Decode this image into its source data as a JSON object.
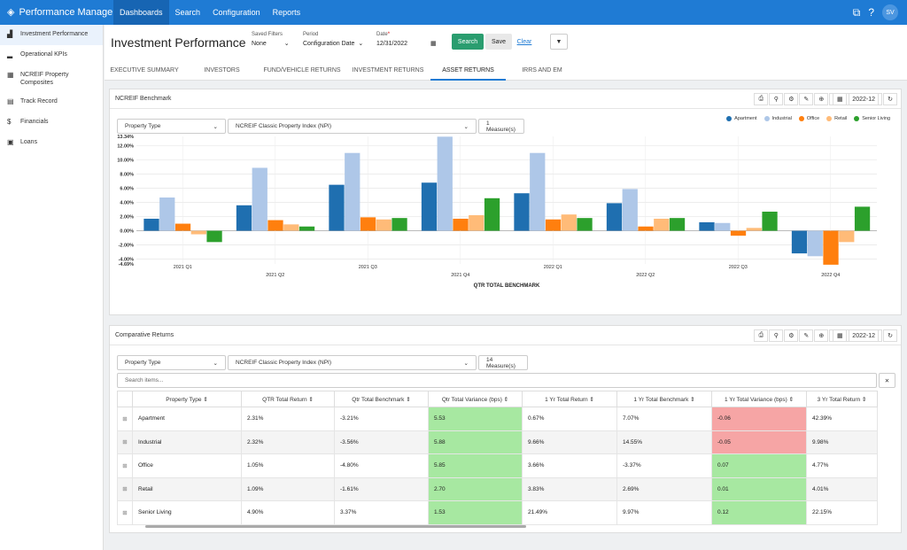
{
  "app": {
    "name": "Performance Manager"
  },
  "nav": [
    "Dashboards",
    "Search",
    "Configuration",
    "Reports"
  ],
  "user": {
    "initials": "SV"
  },
  "sidebar": [
    {
      "label": "Investment Performance",
      "icon": "chart-icon"
    },
    {
      "label": "Operational KPIs",
      "icon": "bars-icon"
    },
    {
      "label": "NCREIF Property Composites",
      "icon": "grid-icon"
    },
    {
      "label": "Track Record",
      "icon": "table-icon"
    },
    {
      "label": "Financials",
      "icon": "dollar-icon"
    },
    {
      "label": "Loans",
      "icon": "list-icon"
    }
  ],
  "page": {
    "title": "Investment Performance"
  },
  "filters": {
    "saved_label": "Saved Filters",
    "saved_value": "None",
    "period_label": "Period",
    "period_value": "Configuration Date",
    "date_label": "Date",
    "date_value": "12/31/2022",
    "search": "Search",
    "save": "Save",
    "clear": "Clear"
  },
  "tabs": [
    "EXECUTIVE SUMMARY",
    "INVESTORS",
    "FUND/VEHICLE RETURNS",
    "INVESTMENT RETURNS",
    "ASSET RETURNS",
    "IRRS AND EM"
  ],
  "benchmark": {
    "title": "NCREIF Benchmark",
    "period": "2022-12",
    "sel1": "Property Type",
    "sel2": "NCREIF Classic Property Index (NPI)",
    "measures": "1 Measure(s)"
  },
  "chart_data": {
    "type": "bar",
    "xlabel": "QTR TOTAL BENCHMARK",
    "categories": [
      "2021 Q1",
      "2021 Q2",
      "2021 Q3",
      "2021 Q4",
      "2022 Q1",
      "2022 Q2",
      "2022 Q3",
      "2022 Q4"
    ],
    "ylim": [
      -4.69,
      13.34
    ],
    "yticks": [
      "13.34%",
      "12.00%",
      "10.00%",
      "8.00%",
      "6.00%",
      "4.00%",
      "2.00%",
      "0.00%",
      "-2.00%",
      "-4.00%",
      "-4.69%"
    ],
    "series": [
      {
        "name": "Apartment",
        "color": "#1f6fb0",
        "values": [
          1.7,
          3.6,
          6.5,
          6.8,
          5.3,
          3.9,
          1.2,
          -3.2
        ]
      },
      {
        "name": "Industrial",
        "color": "#aec7e8",
        "values": [
          4.7,
          8.9,
          11.0,
          13.3,
          11.0,
          5.9,
          1.1,
          -3.6
        ]
      },
      {
        "name": "Office",
        "color": "#ff7f0e",
        "values": [
          1.0,
          1.5,
          1.9,
          1.7,
          1.6,
          0.6,
          -0.7,
          -4.8
        ]
      },
      {
        "name": "Retail",
        "color": "#ffbb78",
        "values": [
          -0.5,
          0.9,
          1.6,
          2.2,
          2.3,
          1.7,
          0.4,
          -1.6
        ]
      },
      {
        "name": "Senior Living",
        "color": "#2ca02c",
        "values": [
          -1.6,
          0.6,
          1.8,
          4.6,
          1.8,
          1.8,
          2.7,
          3.4
        ]
      }
    ],
    "legend": "top-right",
    "grid": true
  },
  "comparative": {
    "title": "Comparative Returns",
    "period": "2022-12",
    "sel1": "Property Type",
    "sel2": "NCREIF Classic Property Index (NPI)",
    "measures": "14 Measure(s)",
    "search_placeholder": "Search items...",
    "clear_glyph": "✕",
    "columns": [
      "",
      "Property Type ⇕",
      "QTR Total Return ⇕",
      "Qtr Total Benchmark ⇕",
      "Qtr Total Variance (bps) ⇕",
      "1 Yr Total Return ⇕",
      "1 Yr Total Benchmark ⇕",
      "1 Yr Total Variance (bps) ⇕",
      "3 Yr Total Return ⇕"
    ],
    "rows": [
      [
        "⊞",
        "Apartment",
        "2.31%",
        "-3.21%",
        "5.53",
        "0.67%",
        "7.07%",
        "-0.06",
        "42.39%"
      ],
      [
        "⊞",
        "Industrial",
        "2.32%",
        "-3.56%",
        "5.88",
        "9.66%",
        "14.55%",
        "-0.05",
        "9.98%"
      ],
      [
        "⊞",
        "Office",
        "1.05%",
        "-4.80%",
        "5.85",
        "3.66%",
        "-3.37%",
        "0.07",
        "4.77%"
      ],
      [
        "⊞",
        "Retail",
        "1.09%",
        "-1.61%",
        "2.70",
        "3.83%",
        "2.69%",
        "0.01",
        "4.01%"
      ],
      [
        "⊞",
        "Senior Living",
        "4.90%",
        "3.37%",
        "1.53",
        "21.49%",
        "9.97%",
        "0.12",
        "22.15%"
      ]
    ],
    "row_styles": [
      [
        "",
        "",
        "",
        "",
        "g",
        "",
        "",
        "r",
        ""
      ],
      [
        "",
        "",
        "",
        "",
        "g",
        "",
        "",
        "r",
        ""
      ],
      [
        "",
        "",
        "",
        "",
        "g",
        "",
        "",
        "g",
        ""
      ],
      [
        "",
        "",
        "",
        "",
        "g",
        "",
        "",
        "g",
        ""
      ],
      [
        "",
        "",
        "",
        "",
        "g",
        "",
        "",
        "g",
        ""
      ]
    ]
  },
  "tools": [
    "⎙",
    "⚲",
    "⚙",
    "✎",
    "⊕",
    "▦"
  ],
  "refresh": "↻"
}
